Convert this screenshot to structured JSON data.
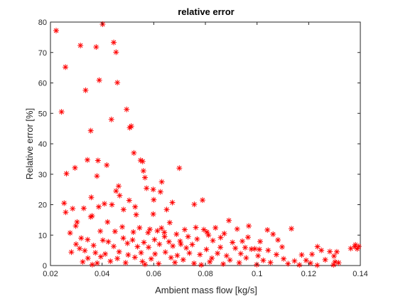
{
  "chart_data": {
    "type": "scatter",
    "title": "relative error",
    "xlabel": "Ambient mass flow [kg/s]",
    "ylabel": "Relative error [%]",
    "xlim": [
      0.02,
      0.14
    ],
    "ylim": [
      0,
      80
    ],
    "xticks": [
      0.02,
      0.04,
      0.06,
      0.08,
      0.1,
      0.12,
      0.14
    ],
    "xtick_labels": [
      "0.02",
      "0.04",
      "0.06",
      "0.08",
      "0.1",
      "0.12",
      "0.14"
    ],
    "yticks": [
      0,
      10,
      20,
      30,
      40,
      50,
      60,
      70,
      80
    ],
    "ytick_labels": [
      "0",
      "10",
      "20",
      "30",
      "40",
      "50",
      "60",
      "70",
      "80"
    ],
    "marker": "asterisk",
    "marker_color": "#ff0000",
    "grid": false,
    "series": [
      {
        "values": [
          [
            0.0222,
            77.2
          ],
          [
            0.0402,
            79.3
          ],
          [
            0.0445,
            73.3
          ],
          [
            0.0454,
            70.1
          ],
          [
            0.0316,
            72.3
          ],
          [
            0.0377,
            71.8
          ],
          [
            0.0258,
            65.2
          ],
          [
            0.0389,
            60.9
          ],
          [
            0.0459,
            60.1
          ],
          [
            0.0243,
            50.5
          ],
          [
            0.0495,
            51.3
          ],
          [
            0.0336,
            57.6
          ],
          [
            0.0507,
            45.3
          ],
          [
            0.0513,
            45.8
          ],
          [
            0.0356,
            44.3
          ],
          [
            0.0436,
            48.0
          ],
          [
            0.0523,
            37.0
          ],
          [
            0.0549,
            34.6
          ],
          [
            0.0557,
            34.2
          ],
          [
            0.0343,
            34.7
          ],
          [
            0.0384,
            34.5
          ],
          [
            0.0418,
            33.0
          ],
          [
            0.0295,
            32.1
          ],
          [
            0.0262,
            30.2
          ],
          [
            0.038,
            29.4
          ],
          [
            0.0699,
            32.0
          ],
          [
            0.056,
            31.1
          ],
          [
            0.0566,
            28.9
          ],
          [
            0.0631,
            27.5
          ],
          [
            0.0464,
            26.1
          ],
          [
            0.0598,
            25.0
          ],
          [
            0.0572,
            25.4
          ],
          [
            0.0358,
            22.4
          ],
          [
            0.0454,
            24.5
          ],
          [
            0.0626,
            24.2
          ],
          [
            0.0468,
            23.0
          ],
          [
            0.0409,
            20.3
          ],
          [
            0.0438,
            20.0
          ],
          [
            0.0505,
            21.4
          ],
          [
            0.0672,
            20.7
          ],
          [
            0.0757,
            20.1
          ],
          [
            0.0789,
            21.5
          ],
          [
            0.0253,
            20.5
          ],
          [
            0.0286,
            18.7
          ],
          [
            0.0329,
            18.8
          ],
          [
            0.0387,
            19.3
          ],
          [
            0.0483,
            18.4
          ],
          [
            0.0532,
            16.7
          ],
          [
            0.0259,
            17.5
          ],
          [
            0.0361,
            16.3
          ],
          [
            0.065,
            18.4
          ],
          [
            0.0545,
            12.4
          ],
          [
            0.0598,
            16.9
          ],
          [
            0.0662,
            14.1
          ],
          [
            0.0891,
            14.8
          ],
          [
            0.0968,
            13.0
          ],
          [
            0.1133,
            12.1
          ],
          [
            0.0303,
            14.3
          ],
          [
            0.0298,
            13.0
          ],
          [
            0.0421,
            14.3
          ],
          [
            0.0478,
            12.7
          ],
          [
            0.0585,
            11.9
          ],
          [
            0.0614,
            11.4
          ],
          [
            0.063,
            12.3
          ],
          [
            0.072,
            11.8
          ],
          [
            0.0763,
            12.5
          ],
          [
            0.0794,
            11.8
          ],
          [
            0.0806,
            11.0
          ],
          [
            0.0839,
            12.4
          ],
          [
            0.0923,
            12.0
          ],
          [
            0.104,
            11.7
          ],
          [
            0.0276,
            10.7
          ],
          [
            0.0393,
            11.3
          ],
          [
            0.045,
            11.2
          ],
          [
            0.0521,
            11.0
          ],
          [
            0.0578,
            10.8
          ],
          [
            0.0642,
            9.5
          ],
          [
            0.0688,
            10.3
          ],
          [
            0.0733,
            9.5
          ],
          [
            0.0812,
            10.0
          ],
          [
            0.0873,
            10.5
          ],
          [
            0.0965,
            9.3
          ],
          [
            0.1062,
            10.3
          ],
          [
            0.0319,
            9.0
          ],
          [
            0.0344,
            8.5
          ],
          [
            0.0403,
            8.3
          ],
          [
            0.0424,
            7.8
          ],
          [
            0.0482,
            9.0
          ],
          [
            0.0518,
            8.4
          ],
          [
            0.0562,
            7.6
          ],
          [
            0.0603,
            8.5
          ],
          [
            0.0659,
            7.8
          ],
          [
            0.0702,
            8.0
          ],
          [
            0.0768,
            8.7
          ],
          [
            0.0829,
            8.2
          ],
          [
            0.0905,
            7.6
          ],
          [
            0.0943,
            8.0
          ],
          [
            0.1012,
            7.9
          ],
          [
            0.1081,
            8.4
          ],
          [
            0.1234,
            6.2
          ],
          [
            0.0299,
            7.0
          ],
          [
            0.0367,
            6.6
          ],
          [
            0.0445,
            6.3
          ],
          [
            0.0498,
            7.3
          ],
          [
            0.0537,
            6.2
          ],
          [
            0.058,
            6.0
          ],
          [
            0.0622,
            7.0
          ],
          [
            0.0674,
            6.4
          ],
          [
            0.0726,
            5.8
          ],
          [
            0.0749,
            6.9
          ],
          [
            0.0804,
            5.3
          ],
          [
            0.0858,
            6.0
          ],
          [
            0.0916,
            5.7
          ],
          [
            0.0954,
            5.9
          ],
          [
            0.0978,
            5.4
          ],
          [
            0.0991,
            5.5
          ],
          [
            0.1043,
            5.0
          ],
          [
            0.1097,
            6.1
          ],
          [
            0.1249,
            5.0
          ],
          [
            0.1282,
            4.6
          ],
          [
            0.1309,
            4.5
          ],
          [
            0.1363,
            5.6
          ],
          [
            0.1378,
            6.2
          ],
          [
            0.1381,
            6.8
          ],
          [
            0.1394,
            6.3
          ],
          [
            0.1388,
            5.5
          ],
          [
            0.0281,
            4.4
          ],
          [
            0.0333,
            4.9
          ],
          [
            0.0374,
            4.2
          ],
          [
            0.0412,
            3.8
          ],
          [
            0.0466,
            4.5
          ],
          [
            0.0501,
            3.5
          ],
          [
            0.0551,
            4.2
          ],
          [
            0.0605,
            3.8
          ],
          [
            0.0645,
            4.4
          ],
          [
            0.0691,
            3.3
          ],
          [
            0.0738,
            4.1
          ],
          [
            0.0779,
            3.6
          ],
          [
            0.0847,
            4.0
          ],
          [
            0.0882,
            3.2
          ],
          [
            0.0937,
            3.9
          ],
          [
            0.1004,
            3.2
          ],
          [
            0.1075,
            3.6
          ],
          [
            0.1173,
            3.5
          ],
          [
            0.1213,
            3.7
          ],
          [
            0.1298,
            3.1
          ],
          [
            0.0345,
            2.4
          ],
          [
            0.0395,
            2.9
          ],
          [
            0.0459,
            2.3
          ],
          [
            0.0527,
            2.7
          ],
          [
            0.059,
            2.2
          ],
          [
            0.0667,
            2.6
          ],
          [
            0.0714,
            1.9
          ],
          [
            0.0825,
            2.4
          ],
          [
            0.0895,
            1.8
          ],
          [
            0.0958,
            2.5
          ],
          [
            0.1024,
            1.7
          ],
          [
            0.1103,
            2.2
          ],
          [
            0.1145,
            1.5
          ],
          [
            0.119,
            1.7
          ],
          [
            0.1264,
            1.9
          ],
          [
            0.1302,
            1.2
          ],
          [
            0.0325,
            1.2
          ],
          [
            0.0381,
            0.8
          ],
          [
            0.0432,
            1.4
          ],
          [
            0.0491,
            0.9
          ],
          [
            0.0556,
            1.3
          ],
          [
            0.0619,
            0.6
          ],
          [
            0.0682,
            1.0
          ],
          [
            0.0756,
            0.7
          ],
          [
            0.0817,
            1.2
          ],
          [
            0.0869,
            0.5
          ],
          [
            0.0931,
            0.9
          ],
          [
            0.1052,
            1.0
          ],
          [
            0.112,
            0.6
          ],
          [
            0.1207,
            0.8
          ],
          [
            0.1316,
            0.9
          ],
          [
            0.0362,
            0.3
          ],
          [
            0.0566,
            0.4
          ],
          [
            0.0784,
            0.2
          ],
          [
            0.0999,
            0.3
          ],
          [
            0.1164,
            0.2
          ],
          [
            0.1233,
            0.1
          ],
          [
            0.1296,
            0.2
          ],
          [
            0.0356,
            16.0
          ],
          [
            0.0313,
            5.6
          ],
          [
            0.0528,
            19.3
          ],
          [
            0.06,
            21.6
          ],
          [
            0.0641,
            10.9
          ],
          [
            0.0705,
            7.0
          ],
          [
            0.0859,
            9.2
          ],
          [
            0.1009,
            5.3
          ]
        ]
      }
    ]
  }
}
